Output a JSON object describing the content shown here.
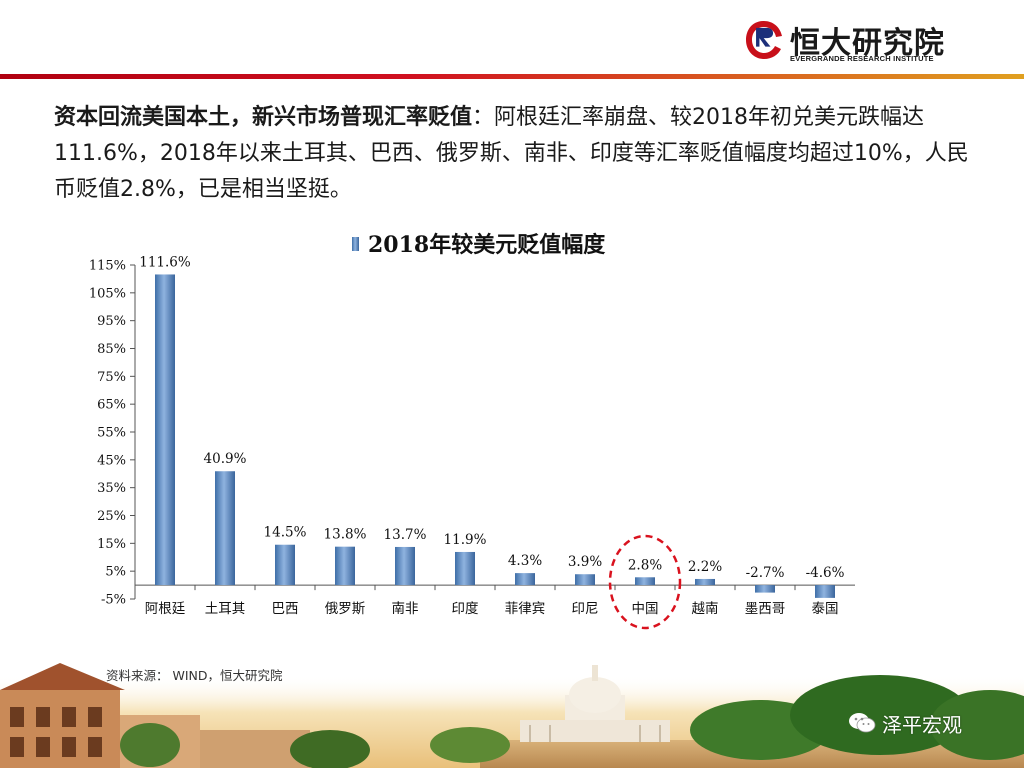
{
  "header": {
    "logo_name": "恒大研究院",
    "logo_sub": "EVERGRANDE RESEARCH INSTITUTE",
    "logo_icon": "evergrande-logo-icon"
  },
  "headline": {
    "bold": "资本回流美国本土，新兴市场普现汇率贬值",
    "body": "：阿根廷汇率崩盘、较2018年初兑美元跌幅达111.6%，2018年以来土耳其、巴西、俄罗斯、南非、印度等汇率贬值幅度均超过10%，人民币贬值2.8%，已是相当坚挺。"
  },
  "chart_data": {
    "type": "bar",
    "title": "",
    "legend": [
      "2018年较美元贬值幅度"
    ],
    "legend_position": "top-center",
    "categories": [
      "阿根廷",
      "土耳其",
      "巴西",
      "俄罗斯",
      "南非",
      "印度",
      "菲律宾",
      "印尼",
      "中国",
      "越南",
      "墨西哥",
      "泰国"
    ],
    "series": [
      {
        "name": "2018年较美元贬值幅度",
        "values": [
          111.6,
          40.9,
          14.5,
          13.8,
          13.7,
          11.9,
          4.3,
          3.9,
          2.8,
          2.2,
          -2.7,
          -4.6
        ],
        "labels": [
          "111.6%",
          "40.9%",
          "14.5%",
          "13.8%",
          "13.7%",
          "11.9%",
          "4.3%",
          "3.9%",
          "2.8%",
          "2.2%",
          "-2.7%",
          "-4.6%"
        ]
      }
    ],
    "yticks": [
      "-5%",
      "5%",
      "15%",
      "25%",
      "35%",
      "45%",
      "55%",
      "65%",
      "75%",
      "85%",
      "95%",
      "105%",
      "115%"
    ],
    "ytick_values": [
      -5,
      5,
      15,
      25,
      35,
      45,
      55,
      65,
      75,
      85,
      95,
      105,
      115
    ],
    "ylim": [
      -5,
      115
    ],
    "grid": false,
    "highlight_category": "中国",
    "bar_color": "#4f81bd"
  },
  "footer": {
    "source": "资料来源： WIND，恒大研究院",
    "watermark": "泽平宏观",
    "watermark_icon": "wechat-icon"
  }
}
